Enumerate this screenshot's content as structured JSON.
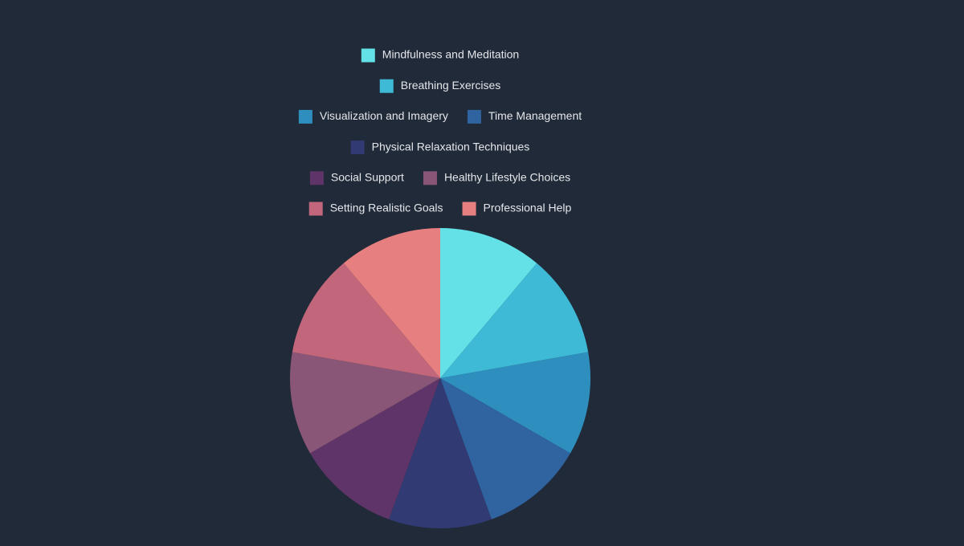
{
  "chart_data": {
    "type": "pie",
    "categories": [
      "Mindfulness and Meditation",
      "Breathing Exercises",
      "Visualization and Imagery",
      "Time Management",
      "Physical Relaxation Techniques",
      "Social Support",
      "Healthy Lifestyle Choices",
      "Setting Realistic Goals",
      "Professional Help"
    ],
    "values": [
      11.1,
      11.1,
      11.1,
      11.1,
      11.1,
      11.1,
      11.1,
      11.1,
      11.1
    ],
    "colors": [
      "#64e1e6",
      "#3fbad6",
      "#2e8fbf",
      "#2f64a0",
      "#323a73",
      "#5f3468",
      "#8a5677",
      "#c2667b",
      "#e67f80"
    ],
    "legend": "top"
  }
}
